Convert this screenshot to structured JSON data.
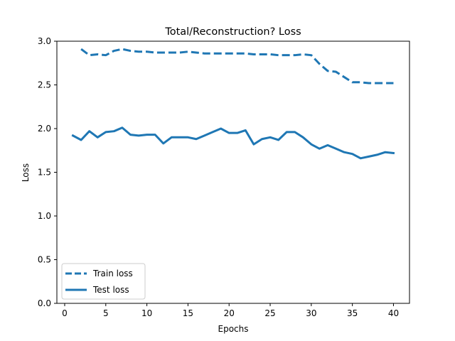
{
  "chart_data": {
    "type": "line",
    "title": "Total/Reconstruction? Loss",
    "xlabel": "Epochs",
    "ylabel": "Loss",
    "xlim": [
      -0.95,
      41.95
    ],
    "ylim": [
      0.0,
      3.0
    ],
    "xticks": [
      "0",
      "5",
      "10",
      "15",
      "20",
      "25",
      "30",
      "35",
      "40"
    ],
    "yticks": [
      "0.0",
      "0.5",
      "1.0",
      "1.5",
      "2.0",
      "2.5",
      "3.0"
    ],
    "grid": false,
    "legend_position": "lower-left",
    "series": [
      {
        "name": "Train loss",
        "style": "dashed",
        "color": "#1f77b4",
        "x": [
          2,
          3,
          4,
          5,
          6,
          7,
          8,
          9,
          10,
          11,
          12,
          13,
          14,
          15,
          16,
          17,
          18,
          19,
          20,
          21,
          22,
          23,
          24,
          25,
          26,
          27,
          28,
          29,
          30,
          31,
          32,
          33,
          34,
          35,
          36,
          37,
          38,
          39,
          40
        ],
        "values": [
          2.91,
          2.84,
          2.85,
          2.84,
          2.89,
          2.91,
          2.89,
          2.88,
          2.88,
          2.87,
          2.87,
          2.87,
          2.87,
          2.88,
          2.87,
          2.86,
          2.86,
          2.86,
          2.86,
          2.86,
          2.86,
          2.85,
          2.85,
          2.85,
          2.84,
          2.84,
          2.84,
          2.85,
          2.84,
          2.74,
          2.66,
          2.65,
          2.59,
          2.53,
          2.53,
          2.52,
          2.52,
          2.52,
          2.52
        ]
      },
      {
        "name": "Test loss",
        "style": "solid",
        "color": "#1f77b4",
        "x": [
          1,
          2,
          3,
          4,
          5,
          6,
          7,
          8,
          9,
          10,
          11,
          12,
          13,
          14,
          15,
          16,
          17,
          18,
          19,
          20,
          21,
          22,
          23,
          24,
          25,
          26,
          27,
          28,
          29,
          30,
          31,
          32,
          33,
          34,
          35,
          36,
          37,
          38,
          39,
          40
        ],
        "values": [
          1.92,
          1.87,
          1.97,
          1.9,
          1.96,
          1.97,
          2.01,
          1.93,
          1.92,
          1.93,
          1.93,
          1.83,
          1.9,
          1.9,
          1.9,
          1.88,
          1.92,
          1.96,
          2.0,
          1.95,
          1.95,
          1.98,
          1.82,
          1.88,
          1.9,
          1.87,
          1.96,
          1.96,
          1.9,
          1.82,
          1.77,
          1.81,
          1.77,
          1.73,
          1.71,
          1.66,
          1.68,
          1.7,
          1.73,
          1.72
        ]
      }
    ]
  }
}
